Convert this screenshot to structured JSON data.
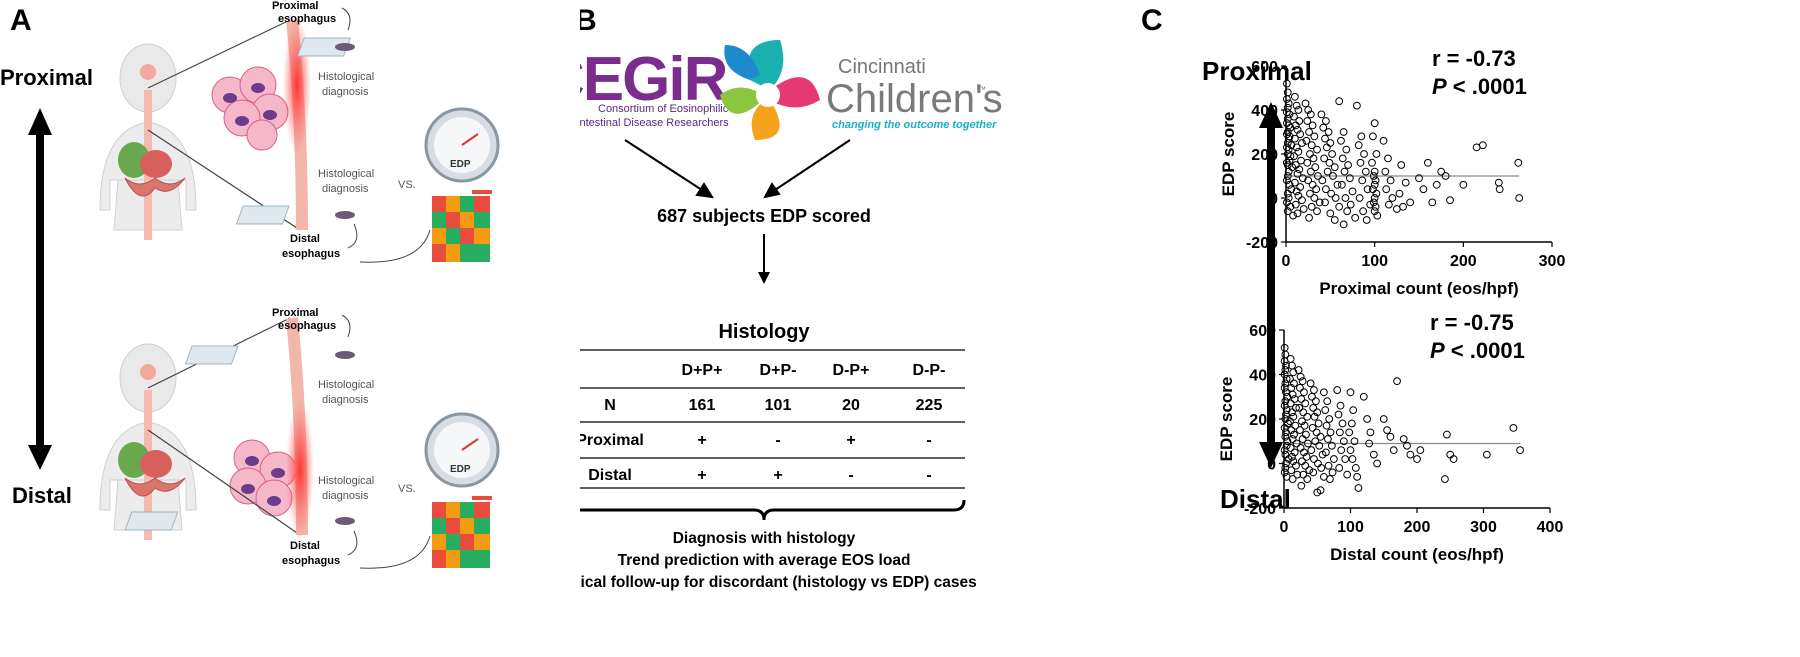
{
  "panelA": {
    "label": "A",
    "proximal": "Proximal",
    "distal": "Distal",
    "proximal_esophagus": [
      "Proximal",
      "esophagus"
    ],
    "distal_esophagus": [
      "Distal",
      "esophagus"
    ],
    "histological_diagnosis": [
      "Histological",
      "diagnosis"
    ],
    "vs": "VS.",
    "edp": "EDP"
  },
  "panelB": {
    "label": "B",
    "cegir_logo_text": "CEGiR",
    "cegir_subtitle": [
      "Consortium of Eosinophilic",
      "Gastrointestinal Disease Researchers"
    ],
    "cincinnati_line1": "Cincinnati",
    "cincinnati_line2": "Children's",
    "cincinnati_tm": "™",
    "cincinnati_tagline": "changing the outcome together",
    "subjects": "687 subjects EDP scored",
    "histology_title": "Histology",
    "table": {
      "headers": [
        "",
        "D+P+",
        "D+P-",
        "D-P+",
        "D-P-"
      ],
      "rows": [
        [
          "N",
          "161",
          "101",
          "20",
          "225"
        ],
        [
          "Proximal",
          "+",
          "-",
          "+",
          "-"
        ],
        [
          "Distal",
          "+",
          "+",
          "-",
          "-"
        ]
      ]
    },
    "outcomes": [
      "Diagnosis with histology",
      "Trend prediction with average EOS load",
      "Clinical follow-up for discordant (histology vs EDP) cases"
    ]
  },
  "panelC": {
    "label": "C",
    "proximal": "Proximal",
    "distal": "Distal"
  },
  "chart_data": [
    {
      "type": "scatter",
      "xlabel": "Proximal count  (eos/hpf)",
      "ylabel": "EDP score",
      "xlim": [
        0,
        300
      ],
      "ylim": [
        -200,
        600
      ],
      "xticks": [
        "0",
        "100",
        "200",
        "300"
      ],
      "yticks": [
        "-200",
        "0",
        "200",
        "400",
        "600"
      ],
      "stat_r": "r = -0.73",
      "stat_p_italic": "P",
      "stat_p_rest": " < .0001",
      "fit_y": 100,
      "points": [
        [
          1,
          520
        ],
        [
          2,
          480
        ],
        [
          1,
          450
        ],
        [
          3,
          430
        ],
        [
          2,
          410
        ],
        [
          1,
          390
        ],
        [
          4,
          380
        ],
        [
          2,
          360
        ],
        [
          1,
          340
        ],
        [
          3,
          330
        ],
        [
          5,
          320
        ],
        [
          2,
          300
        ],
        [
          1,
          290
        ],
        [
          4,
          280
        ],
        [
          3,
          270
        ],
        [
          2,
          250
        ],
        [
          6,
          240
        ],
        [
          1,
          230
        ],
        [
          3,
          220
        ],
        [
          2,
          200
        ],
        [
          5,
          190
        ],
        [
          4,
          170
        ],
        [
          1,
          160
        ],
        [
          2,
          150
        ],
        [
          7,
          140
        ],
        [
          3,
          120
        ],
        [
          2,
          100
        ],
        [
          1,
          80
        ],
        [
          4,
          60
        ],
        [
          6,
          40
        ],
        [
          2,
          20
        ],
        [
          3,
          0
        ],
        [
          1,
          -20
        ],
        [
          5,
          -40
        ],
        [
          2,
          -60
        ],
        [
          8,
          -80
        ],
        [
          10,
          460
        ],
        [
          12,
          420
        ],
        [
          14,
          400
        ],
        [
          9,
          370
        ],
        [
          15,
          350
        ],
        [
          11,
          330
        ],
        [
          13,
          310
        ],
        [
          16,
          290
        ],
        [
          10,
          270
        ],
        [
          18,
          250
        ],
        [
          12,
          230
        ],
        [
          14,
          210
        ],
        [
          9,
          190
        ],
        [
          17,
          170
        ],
        [
          11,
          150
        ],
        [
          15,
          130
        ],
        [
          13,
          110
        ],
        [
          19,
          90
        ],
        [
          10,
          70
        ],
        [
          16,
          50
        ],
        [
          12,
          30
        ],
        [
          14,
          10
        ],
        [
          18,
          -10
        ],
        [
          11,
          -30
        ],
        [
          20,
          -50
        ],
        [
          13,
          -70
        ],
        [
          22,
          430
        ],
        [
          25,
          400
        ],
        [
          28,
          380
        ],
        [
          24,
          350
        ],
        [
          30,
          330
        ],
        [
          26,
          300
        ],
        [
          32,
          280
        ],
        [
          23,
          260
        ],
        [
          29,
          240
        ],
        [
          35,
          220
        ],
        [
          27,
          200
        ],
        [
          31,
          180
        ],
        [
          24,
          160
        ],
        [
          33,
          140
        ],
        [
          28,
          120
        ],
        [
          36,
          100
        ],
        [
          25,
          80
        ],
        [
          30,
          60
        ],
        [
          34,
          40
        ],
        [
          27,
          20
        ],
        [
          32,
          0
        ],
        [
          38,
          -20
        ],
        [
          29,
          -40
        ],
        [
          35,
          -60
        ],
        [
          26,
          -90
        ],
        [
          40,
          380
        ],
        [
          45,
          350
        ],
        [
          42,
          320
        ],
        [
          48,
          300
        ],
        [
          44,
          270
        ],
        [
          50,
          250
        ],
        [
          46,
          230
        ],
        [
          52,
          200
        ],
        [
          43,
          180
        ],
        [
          49,
          160
        ],
        [
          55,
          140
        ],
        [
          47,
          120
        ],
        [
          53,
          100
        ],
        [
          41,
          80
        ],
        [
          58,
          60
        ],
        [
          45,
          40
        ],
        [
          51,
          20
        ],
        [
          56,
          0
        ],
        [
          44,
          -20
        ],
        [
          60,
          -40
        ],
        [
          50,
          -70
        ],
        [
          55,
          -100
        ],
        [
          60,
          440
        ],
        [
          65,
          300
        ],
        [
          62,
          260
        ],
        [
          68,
          220
        ],
        [
          64,
          180
        ],
        [
          70,
          150
        ],
        [
          66,
          120
        ],
        [
          72,
          90
        ],
        [
          63,
          60
        ],
        [
          75,
          30
        ],
        [
          67,
          0
        ],
        [
          73,
          -30
        ],
        [
          69,
          -60
        ],
        [
          78,
          -90
        ],
        [
          65,
          -120
        ],
        [
          80,
          420
        ],
        [
          85,
          280
        ],
        [
          82,
          240
        ],
        [
          88,
          200
        ],
        [
          84,
          160
        ],
        [
          90,
          120
        ],
        [
          86,
          80
        ],
        [
          92,
          40
        ],
        [
          83,
          0
        ],
        [
          95,
          -30
        ],
        [
          87,
          -60
        ],
        [
          91,
          -100
        ],
        [
          100,
          340
        ],
        [
          98,
          280
        ],
        [
          102,
          200
        ],
        [
          97,
          160
        ],
        [
          100,
          120
        ],
        [
          99,
          100
        ],
        [
          101,
          80
        ],
        [
          100,
          60
        ],
        [
          98,
          40
        ],
        [
          102,
          20
        ],
        [
          100,
          0
        ],
        [
          99,
          -20
        ],
        [
          101,
          -40
        ],
        [
          100,
          -60
        ],
        [
          103,
          -80
        ],
        [
          110,
          260
        ],
        [
          115,
          180
        ],
        [
          112,
          120
        ],
        [
          118,
          80
        ],
        [
          113,
          40
        ],
        [
          120,
          0
        ],
        [
          116,
          -30
        ],
        [
          125,
          -50
        ],
        [
          130,
          150
        ],
        [
          135,
          70
        ],
        [
          128,
          20
        ],
        [
          140,
          -20
        ],
        [
          132,
          -40
        ],
        [
          150,
          90
        ],
        [
          155,
          40
        ],
        [
          160,
          160
        ],
        [
          165,
          -20
        ],
        [
          175,
          120
        ],
        [
          180,
          100
        ],
        [
          170,
          60
        ],
        [
          185,
          -10
        ],
        [
          200,
          60
        ],
        [
          215,
          230
        ],
        [
          222,
          240
        ],
        [
          240,
          70
        ],
        [
          241,
          40
        ],
        [
          262,
          160
        ],
        [
          263,
          0
        ]
      ]
    },
    {
      "type": "scatter",
      "xlabel": "Distal count  (eos/hpf)",
      "ylabel": "EDP score",
      "xlim": [
        0,
        400
      ],
      "ylim": [
        -200,
        600
      ],
      "xticks": [
        "0",
        "100",
        "200",
        "300",
        "400"
      ],
      "yticks": [
        "-200",
        "0",
        "200",
        "400",
        "600"
      ],
      "stat_r": "r = -0.75",
      "stat_p_italic": "P",
      "stat_p_rest": " < .0001",
      "fit_y": 90,
      "points": [
        [
          1,
          520
        ],
        [
          2,
          490
        ],
        [
          1,
          460
        ],
        [
          3,
          440
        ],
        [
          2,
          420
        ],
        [
          1,
          400
        ],
        [
          4,
          380
        ],
        [
          2,
          360
        ],
        [
          1,
          340
        ],
        [
          3,
          320
        ],
        [
          5,
          300
        ],
        [
          2,
          280
        ],
        [
          1,
          260
        ],
        [
          4,
          240
        ],
        [
          3,
          220
        ],
        [
          2,
          200
        ],
        [
          6,
          180
        ],
        [
          1,
          160
        ],
        [
          3,
          140
        ],
        [
          2,
          120
        ],
        [
          5,
          100
        ],
        [
          4,
          80
        ],
        [
          1,
          60
        ],
        [
          2,
          40
        ],
        [
          7,
          20
        ],
        [
          3,
          0
        ],
        [
          2,
          -20
        ],
        [
          1,
          -40
        ],
        [
          4,
          -60
        ],
        [
          10,
          470
        ],
        [
          12,
          440
        ],
        [
          14,
          410
        ],
        [
          9,
          380
        ],
        [
          15,
          360
        ],
        [
          11,
          340
        ],
        [
          13,
          310
        ],
        [
          16,
          290
        ],
        [
          10,
          270
        ],
        [
          18,
          250
        ],
        [
          12,
          230
        ],
        [
          14,
          210
        ],
        [
          9,
          190
        ],
        [
          17,
          170
        ],
        [
          11,
          150
        ],
        [
          15,
          130
        ],
        [
          13,
          110
        ],
        [
          19,
          90
        ],
        [
          10,
          70
        ],
        [
          16,
          50
        ],
        [
          12,
          30
        ],
        [
          14,
          10
        ],
        [
          18,
          -10
        ],
        [
          11,
          -30
        ],
        [
          20,
          -50
        ],
        [
          13,
          -70
        ],
        [
          22,
          420
        ],
        [
          25,
          390
        ],
        [
          28,
          370
        ],
        [
          24,
          340
        ],
        [
          30,
          320
        ],
        [
          26,
          290
        ],
        [
          32,
          270
        ],
        [
          23,
          250
        ],
        [
          29,
          230
        ],
        [
          35,
          210
        ],
        [
          27,
          190
        ],
        [
          31,
          170
        ],
        [
          24,
          150
        ],
        [
          33,
          130
        ],
        [
          28,
          110
        ],
        [
          36,
          90
        ],
        [
          25,
          70
        ],
        [
          30,
          50
        ],
        [
          34,
          30
        ],
        [
          27,
          10
        ],
        [
          32,
          -10
        ],
        [
          38,
          -30
        ],
        [
          29,
          -50
        ],
        [
          35,
          -70
        ],
        [
          26,
          -100
        ],
        [
          40,
          360
        ],
        [
          45,
          330
        ],
        [
          42,
          300
        ],
        [
          48,
          280
        ],
        [
          44,
          250
        ],
        [
          50,
          230
        ],
        [
          46,
          210
        ],
        [
          52,
          180
        ],
        [
          43,
          160
        ],
        [
          49,
          140
        ],
        [
          55,
          120
        ],
        [
          47,
          100
        ],
        [
          53,
          80
        ],
        [
          41,
          60
        ],
        [
          58,
          40
        ],
        [
          45,
          20
        ],
        [
          51,
          0
        ],
        [
          56,
          -20
        ],
        [
          44,
          -40
        ],
        [
          60,
          -60
        ],
        [
          50,
          -130
        ],
        [
          55,
          -120
        ],
        [
          60,
          320
        ],
        [
          65,
          280
        ],
        [
          62,
          240
        ],
        [
          68,
          200
        ],
        [
          64,
          170
        ],
        [
          70,
          140
        ],
        [
          66,
          110
        ],
        [
          72,
          80
        ],
        [
          63,
          50
        ],
        [
          75,
          20
        ],
        [
          67,
          -10
        ],
        [
          73,
          -40
        ],
        [
          69,
          -70
        ],
        [
          80,
          330
        ],
        [
          85,
          260
        ],
        [
          82,
          220
        ],
        [
          88,
          180
        ],
        [
          84,
          140
        ],
        [
          90,
          100
        ],
        [
          86,
          60
        ],
        [
          92,
          20
        ],
        [
          83,
          -20
        ],
        [
          95,
          -50
        ],
        [
          100,
          320
        ],
        [
          104,
          240
        ],
        [
          102,
          180
        ],
        [
          98,
          140
        ],
        [
          106,
          100
        ],
        [
          100,
          60
        ],
        [
          103,
          20
        ],
        [
          108,
          -20
        ],
        [
          110,
          -60
        ],
        [
          112,
          -110
        ],
        [
          120,
          300
        ],
        [
          125,
          200
        ],
        [
          130,
          140
        ],
        [
          128,
          90
        ],
        [
          135,
          40
        ],
        [
          140,
          0
        ],
        [
          150,
          200
        ],
        [
          155,
          150
        ],
        [
          160,
          120
        ],
        [
          170,
          370
        ],
        [
          165,
          60
        ],
        [
          180,
          110
        ],
        [
          185,
          80
        ],
        [
          190,
          40
        ],
        [
          200,
          20
        ],
        [
          205,
          60
        ],
        [
          245,
          130
        ],
        [
          250,
          40
        ],
        [
          255,
          20
        ],
        [
          242,
          -70
        ],
        [
          305,
          40
        ],
        [
          345,
          160
        ],
        [
          355,
          60
        ]
      ]
    }
  ]
}
